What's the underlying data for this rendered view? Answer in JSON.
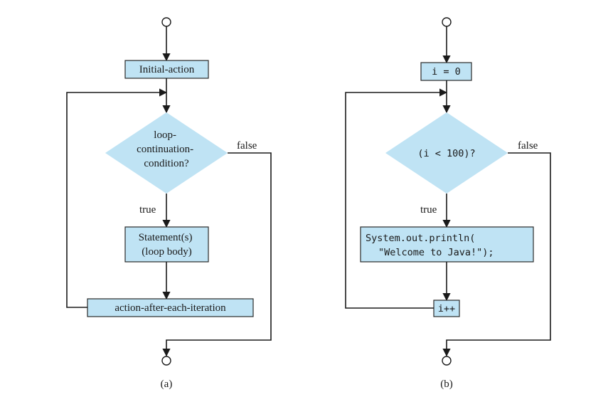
{
  "diagram_a": {
    "initial_action": "Initial-action",
    "condition_lines": [
      "loop-",
      "continuation-",
      "condition?"
    ],
    "true_label": "true",
    "false_label": "false",
    "body_lines": [
      "Statement(s)",
      "(loop body)"
    ],
    "after_action": "action-after-each-iteration",
    "caption": "(a)"
  },
  "diagram_b": {
    "initial_action": "i = 0",
    "condition": "(i < 100)?",
    "true_label": "true",
    "false_label": "false",
    "body_lines": [
      "System.out.println(",
      "\"Welcome to Java!\");"
    ],
    "after_action": "i++",
    "caption": "(b)"
  },
  "colors": {
    "box_fill": "#bfe3f4",
    "line": "#1a1a1a"
  }
}
